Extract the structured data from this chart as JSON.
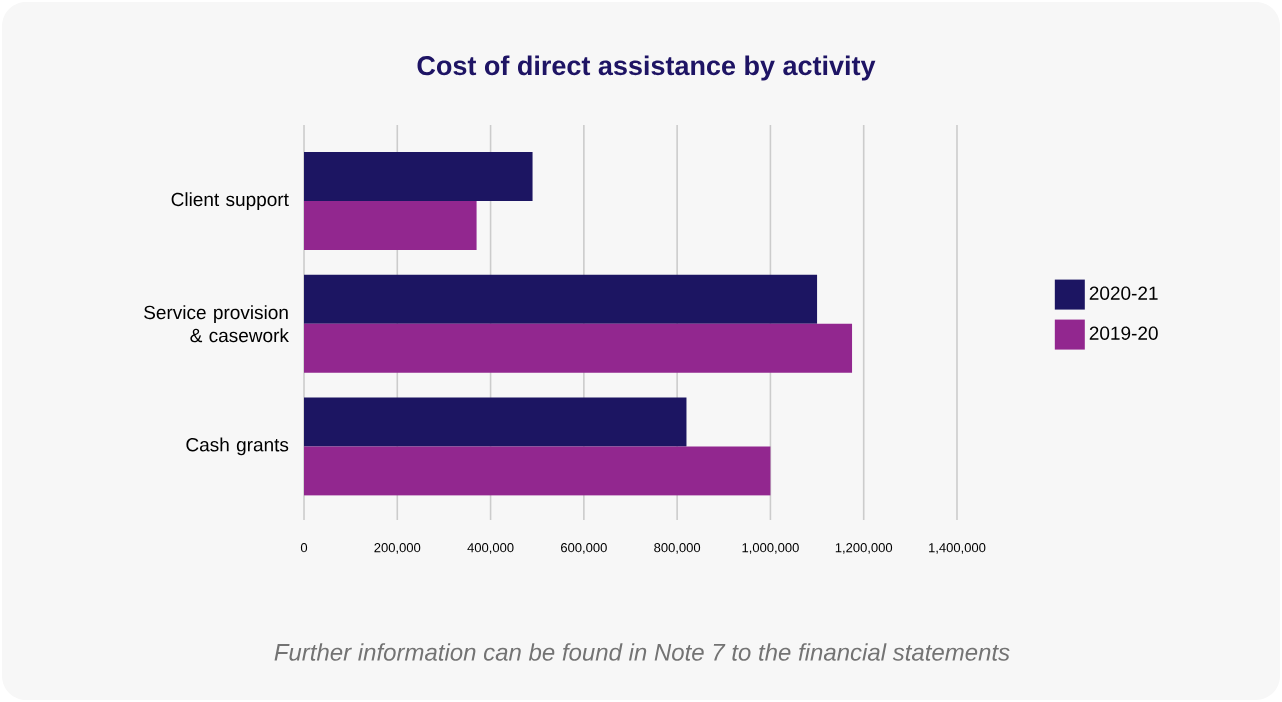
{
  "chart_data": {
    "type": "bar",
    "orientation": "horizontal",
    "title": "Cost of direct assistance by activity",
    "categories": [
      "Client support",
      "Service provision & casework",
      "Cash grants"
    ],
    "series": [
      {
        "name": "2020-21",
        "color": "#1c1562",
        "values": [
          490000,
          1100000,
          820000
        ]
      },
      {
        "name": "2019-20",
        "color": "#92278f",
        "values": [
          370000,
          1175000,
          1000000
        ]
      }
    ],
    "xlim": [
      0,
      1400000
    ],
    "xticks": [
      0,
      {
        "value": 200000,
        "label": "200,000"
      },
      {
        "value": 400000,
        "label": "400,000"
      },
      {
        "value": 600000,
        "label": "600,000"
      },
      {
        "value": 800000,
        "label": "800,000"
      },
      {
        "value": 1000000,
        "label": "1,000,000"
      },
      {
        "value": 1200000,
        "label": "1,200,000"
      },
      {
        "value": 1400000,
        "label": "1,400,000"
      }
    ],
    "grid": "x",
    "legend": "right",
    "annotations": [
      "Further information can be found in Note 7 to the financial statements"
    ]
  }
}
